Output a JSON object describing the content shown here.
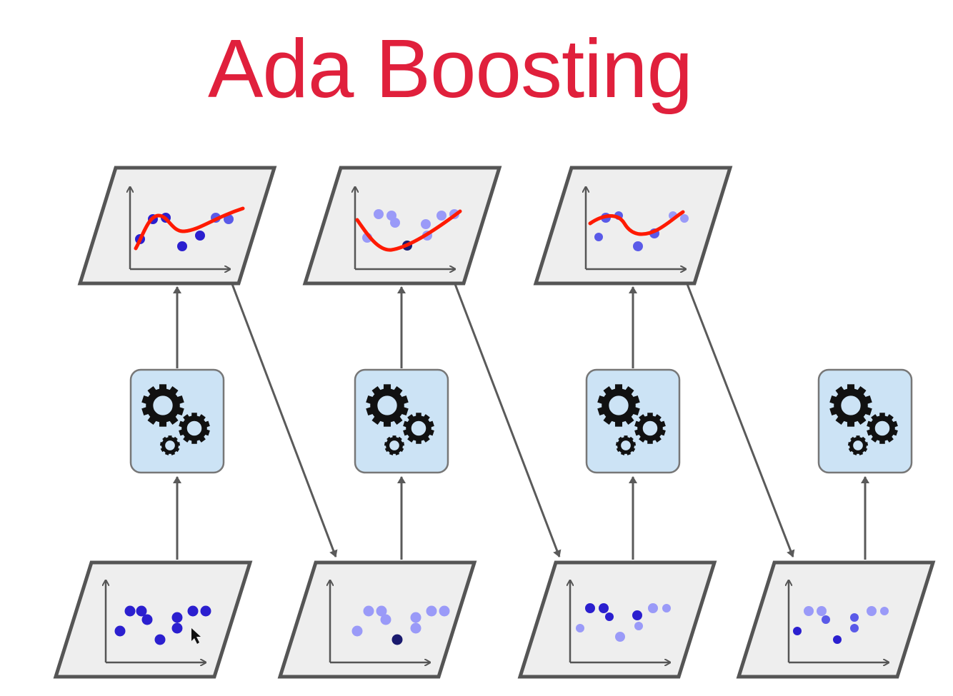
{
  "title": "Ada Boosting",
  "colors": {
    "title": "#e0203c",
    "panel_fill": "#eeeeee",
    "panel_stroke": "#555555",
    "axis": "#555555",
    "arrow": "#5a5a5a",
    "box_fill": "#cce3f5",
    "box_stroke": "#777777",
    "gear": "#111111",
    "curve": "#ff1a00",
    "dot_dark": "#2b1fcf",
    "dot_mid": "#5a5ae8",
    "dot_light": "#9a9af8",
    "dot_navy": "#1a1a6e"
  },
  "icons": {
    "predictor": "gears-icon",
    "arrow": "arrow-icon"
  }
}
